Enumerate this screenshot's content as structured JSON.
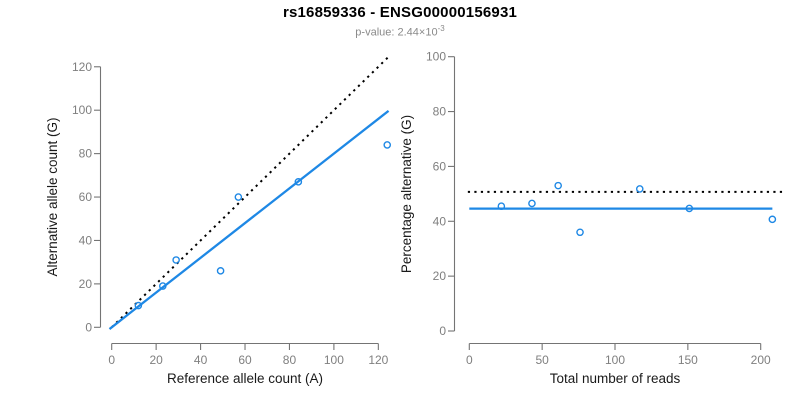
{
  "figure": {
    "title": "rs16859336 - ENSG00000156931",
    "subtitle": {
      "text": "p-value: 2.44×10",
      "exponent": "-3"
    }
  },
  "colors": {
    "point_blue": "#1E88E5",
    "fit_blue": "#1E88E5",
    "dotted_black": "#000000",
    "axis_gray": "#747474",
    "tick_label_gray": "#7f7f7f",
    "axis_label_black": "#1a1a1a",
    "subtitle_gray": "#8a8a8a",
    "background": "#ffffff"
  },
  "chart_data": [
    {
      "type": "scatter",
      "panel": "left",
      "xlabel": "Reference allele count (A)",
      "ylabel": "Alternative allele count (G)",
      "xlim": [
        0,
        120
      ],
      "ylim": [
        0,
        120
      ],
      "xticks": [
        0,
        20,
        40,
        60,
        80,
        100,
        120
      ],
      "yticks": [
        0,
        20,
        40,
        60,
        80,
        100,
        120
      ],
      "points": [
        [
          12,
          10
        ],
        [
          23,
          19
        ],
        [
          29,
          31
        ],
        [
          49,
          26
        ],
        [
          57,
          60
        ],
        [
          84,
          67
        ],
        [
          124,
          84
        ]
      ],
      "lines": [
        {
          "name": "identity-line",
          "style": "dotted",
          "color": "#000000",
          "from": [
            0,
            0
          ],
          "to": [
            124.5,
            124.5
          ]
        },
        {
          "name": "fit-line",
          "style": "solid",
          "color": "#1E88E5",
          "from": [
            -1,
            -0.8
          ],
          "to": [
            124.6,
            99.7
          ]
        }
      ],
      "grid": false,
      "legend": "none"
    },
    {
      "type": "scatter",
      "panel": "right",
      "xlabel": "Total number of reads",
      "ylabel": "Percentage alternative (G)",
      "xlim": [
        0,
        200
      ],
      "ylim": [
        0,
        100
      ],
      "xticks": [
        0,
        50,
        100,
        150,
        200
      ],
      "yticks": [
        0,
        20,
        40,
        60,
        80,
        100
      ],
      "points": [
        [
          22,
          45.5
        ],
        [
          43,
          46.5
        ],
        [
          61,
          53
        ],
        [
          76,
          36
        ],
        [
          117,
          51.8
        ],
        [
          151,
          44.7
        ],
        [
          208,
          40.7
        ]
      ],
      "lines": [
        {
          "name": "expected-line",
          "style": "dotted",
          "color": "#000000",
          "from": [
            -1,
            50.7
          ],
          "to": [
            216,
            50.7
          ]
        },
        {
          "name": "fit-line",
          "style": "solid",
          "color": "#1E88E5",
          "from": [
            0,
            44.6
          ],
          "to": [
            208,
            44.6
          ]
        }
      ],
      "grid": false,
      "legend": "none"
    }
  ]
}
